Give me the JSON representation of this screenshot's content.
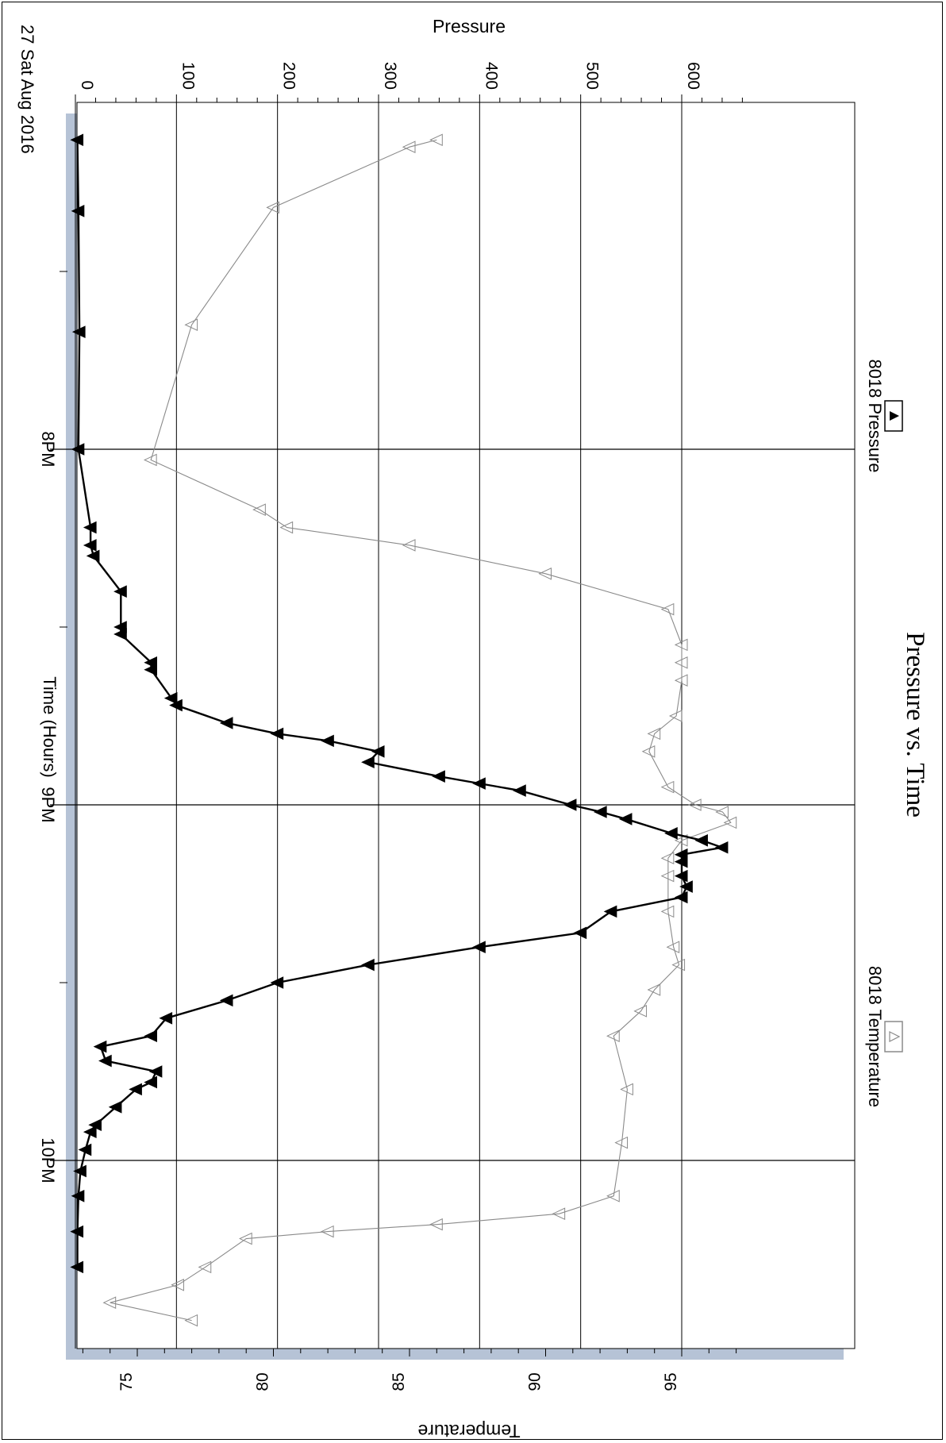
{
  "chart_data": {
    "type": "line",
    "title": "Pressure vs. Time",
    "date_label": "27 Sat Aug 2016",
    "xlabel": "Time (Hours)",
    "ylabel_left": "Pressure",
    "ylabel_right": "Temperature",
    "x_ticks": [
      "8PM",
      "9PM",
      "10PM"
    ],
    "x_range_hours": [
      19.0,
      22.48
    ],
    "pressure_range": [
      0,
      660
    ],
    "pressure_ticks": [
      0,
      100,
      200,
      300,
      400,
      500,
      600
    ],
    "temperature_range": [
      72.2,
      97.5
    ],
    "temperature_ticks": [
      75,
      80,
      85,
      90,
      95
    ],
    "grid": true,
    "legend": [
      {
        "name": "8018 Pressure",
        "marker": "filled-triangle",
        "color": "#000000"
      },
      {
        "name": "8018 Temperature",
        "marker": "open-triangle",
        "color": "#8a8a8a"
      }
    ],
    "series": [
      {
        "name": "8018 Pressure",
        "axis": "left",
        "x": [
          19.13,
          19.33,
          19.67,
          20.0,
          20.22,
          20.27,
          20.3,
          20.4,
          20.5,
          20.52,
          20.6,
          20.62,
          20.7,
          20.72,
          20.77,
          20.8,
          20.82,
          20.85,
          20.88,
          20.92,
          20.94,
          20.96,
          21.0,
          21.02,
          21.04,
          21.08,
          21.1,
          21.12,
          21.14,
          21.16,
          21.2,
          21.23,
          21.26,
          21.3,
          21.36,
          21.4,
          21.45,
          21.5,
          21.55,
          21.6,
          21.65,
          21.68,
          21.72,
          21.75,
          21.78,
          21.8,
          21.85,
          21.9,
          21.92,
          21.97,
          22.03,
          22.1,
          22.2,
          22.3
        ],
        "values": [
          2,
          3,
          4,
          3,
          15,
          15,
          18,
          45,
          45,
          45,
          75,
          75,
          95,
          100,
          150,
          200,
          250,
          300,
          290,
          360,
          400,
          440,
          490,
          520,
          545,
          590,
          620,
          640,
          600,
          600,
          600,
          605,
          600,
          530,
          500,
          400,
          290,
          200,
          150,
          90,
          75,
          25,
          30,
          80,
          75,
          60,
          40,
          20,
          15,
          10,
          5,
          3,
          2,
          2
        ]
      },
      {
        "name": "8018 Temperature",
        "axis": "right",
        "x": [
          19.13,
          19.15,
          19.32,
          19.65,
          20.03,
          20.17,
          20.22,
          20.27,
          20.35,
          20.45,
          20.55,
          20.6,
          20.65,
          20.75,
          20.8,
          20.85,
          20.95,
          21.0,
          21.02,
          21.05,
          21.1,
          21.15,
          21.2,
          21.3,
          21.4,
          21.45,
          21.52,
          21.58,
          21.65,
          21.8,
          21.95,
          22.1,
          22.15,
          22.18,
          22.2,
          22.22,
          22.3,
          22.35,
          22.4,
          22.45
        ],
        "values": [
          86.0,
          85.0,
          80.0,
          77.0,
          75.5,
          79.5,
          80.5,
          85.0,
          90.0,
          94.5,
          95.0,
          95.0,
          95.0,
          94.8,
          94.0,
          93.8,
          94.5,
          95.5,
          96.5,
          96.8,
          95.0,
          94.5,
          94.5,
          94.5,
          94.7,
          94.9,
          94.0,
          93.5,
          92.5,
          93.0,
          92.8,
          92.5,
          90.5,
          86.0,
          82.0,
          79.0,
          77.5,
          76.5,
          74.0,
          77.0
        ]
      }
    ]
  }
}
